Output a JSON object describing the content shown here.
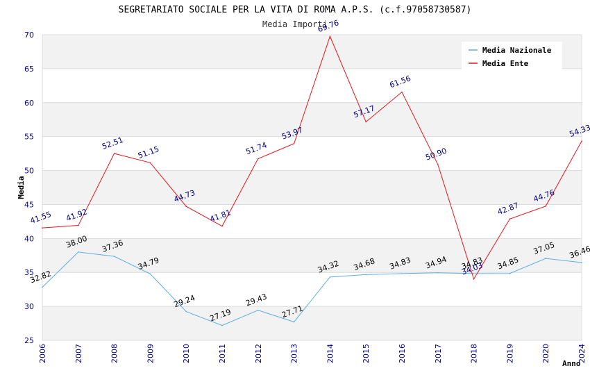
{
  "chart_data": {
    "type": "line",
    "title": "SEGRETARIATO SOCIALE PER LA VITA DI ROMA A.P.S. (c.f.97058730587)",
    "subtitle": "Media Importi",
    "xlabel": "Anno",
    "ylabel": "Media",
    "ylim": [
      25,
      70
    ],
    "yticks": [
      25,
      30,
      35,
      40,
      45,
      50,
      55,
      60,
      65,
      70
    ],
    "categories": [
      "2006",
      "2007",
      "2008",
      "2009",
      "2010",
      "2011",
      "2012",
      "2013",
      "2014",
      "2015",
      "2016",
      "2017",
      "2018",
      "2019",
      "2020",
      "2024"
    ],
    "legend_position": "top-right",
    "series": [
      {
        "name": "Media Nazionale",
        "color": "#5dade2",
        "values": [
          32.82,
          38.0,
          37.36,
          34.79,
          29.24,
          27.19,
          29.43,
          27.71,
          34.32,
          34.68,
          34.83,
          34.94,
          34.83,
          34.85,
          37.05,
          36.46
        ],
        "labels": [
          "32.82",
          "38.00",
          "37.36",
          "34.79",
          "29.24",
          "27.19",
          "29.43",
          "27.71",
          "34.32",
          "34.68",
          "34.83",
          "34.94",
          "34.83",
          "34.85",
          "37.05",
          "36.46"
        ]
      },
      {
        "name": "Media Ente",
        "color": "#e8141b",
        "values": [
          41.55,
          41.92,
          52.51,
          51.15,
          44.73,
          41.81,
          51.74,
          53.97,
          69.76,
          57.17,
          61.56,
          50.9,
          34.03,
          42.87,
          44.76,
          54.33
        ],
        "labels": [
          "41.55",
          "41.92",
          "52.51",
          "51.15",
          "44.73",
          "41.81",
          "51.74",
          "53.97",
          "69.76",
          "57.17",
          "61.56",
          "50.90",
          "34.03",
          "42.87",
          "44.76",
          "54.33"
        ]
      }
    ]
  }
}
